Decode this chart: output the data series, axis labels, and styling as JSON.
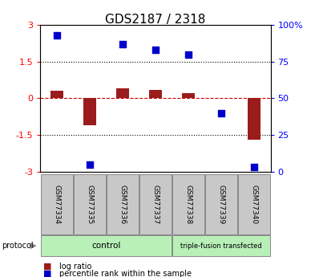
{
  "title": "GDS2187 / 2318",
  "samples": [
    "GSM77334",
    "GSM77335",
    "GSM77336",
    "GSM77337",
    "GSM77338",
    "GSM77339",
    "GSM77340"
  ],
  "log_ratio": [
    0.3,
    -1.1,
    0.4,
    0.35,
    0.2,
    0.0,
    -1.7
  ],
  "percentile_rank": [
    93,
    5,
    87,
    83,
    80,
    40,
    3
  ],
  "ylim_left": [
    -3,
    3
  ],
  "ylim_right": [
    0,
    100
  ],
  "yticks_left": [
    -3,
    -1.5,
    0,
    1.5,
    3
  ],
  "ytick_labels_left": [
    "-3",
    "-1.5",
    "0",
    "1.5",
    "3"
  ],
  "yticks_right": [
    0,
    25,
    50,
    75,
    100
  ],
  "ytick_labels_right": [
    "0",
    "25",
    "50",
    "75",
    "100%"
  ],
  "hlines_dotted": [
    -1.5,
    1.5
  ],
  "bar_color": "#9B1C1C",
  "dot_color": "#0000CC",
  "zero_line_color": "#CC0000",
  "control_count": 4,
  "triple_count": 3,
  "protocol_label": "protocol",
  "legend_items": [
    {
      "label": "log ratio",
      "color": "#9B1C1C"
    },
    {
      "label": "percentile rank within the sample",
      "color": "#0000CC"
    }
  ],
  "sample_box_color": "#C8C8C8",
  "sample_box_edge": "#888888",
  "proto_color": "#b8f0b8",
  "proto_edge": "#888888"
}
